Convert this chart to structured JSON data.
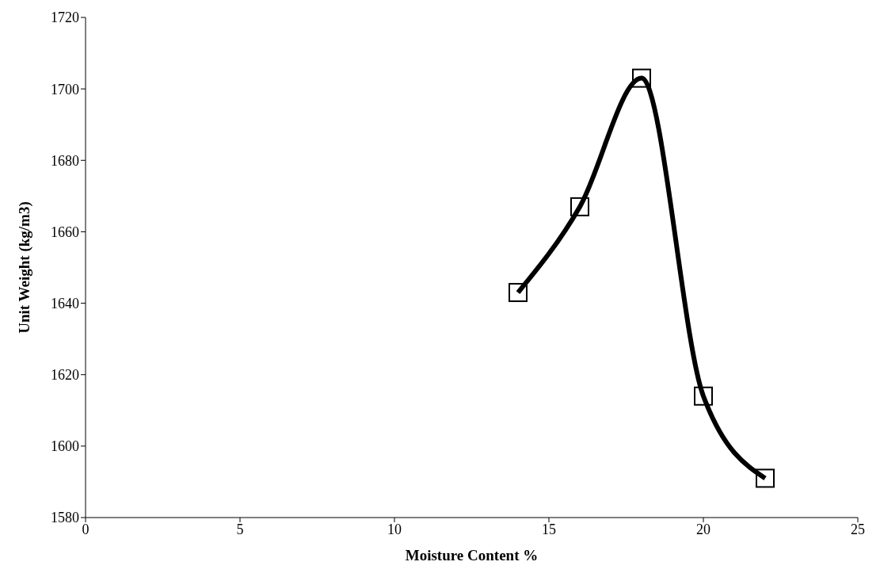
{
  "chart_data": {
    "type": "line",
    "xlabel": "Moisture Content %",
    "ylabel": "Unit Weight (kg/m3)",
    "x": [
      14,
      16,
      18,
      20,
      22
    ],
    "series": [
      {
        "color": "#000000",
        "values": [
          1643,
          1667,
          1703,
          1614,
          1591
        ]
      }
    ],
    "xlim": [
      0,
      25
    ],
    "xticks": [
      0,
      5,
      10,
      15,
      20,
      25
    ],
    "ylim": [
      1580,
      1720
    ],
    "yticks": [
      1580,
      1600,
      1620,
      1640,
      1660,
      1680,
      1700,
      1720
    ],
    "grid": false,
    "legend": false,
    "marker": "square",
    "line_style": "solid"
  }
}
